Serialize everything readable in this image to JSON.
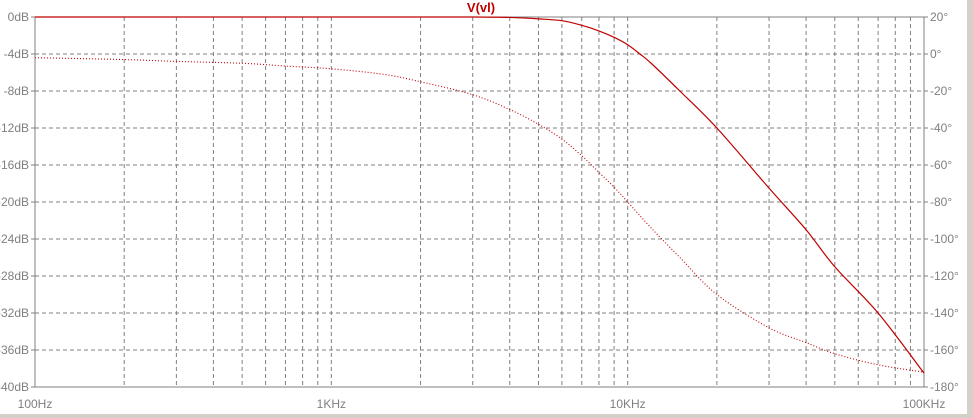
{
  "chart_data": {
    "type": "line",
    "title": "V(vl)",
    "x_scale": "log",
    "xlim": [
      100,
      100000
    ],
    "x_ticks": [
      {
        "value": 100,
        "label": "100Hz"
      },
      {
        "value": 1000,
        "label": "1KHz"
      },
      {
        "value": 10000,
        "label": "10KHz"
      },
      {
        "value": 100000,
        "label": "100KHz"
      }
    ],
    "ylim_left": [
      -40,
      0
    ],
    "y_left_ticks": [
      {
        "value": 0,
        "label": "0dB"
      },
      {
        "value": -4,
        "label": "-4dB"
      },
      {
        "value": -8,
        "label": "-8dB"
      },
      {
        "value": -12,
        "label": "-12dB"
      },
      {
        "value": -16,
        "label": "-16dB"
      },
      {
        "value": -20,
        "label": "-20dB"
      },
      {
        "value": -24,
        "label": "-24dB"
      },
      {
        "value": -28,
        "label": "-28dB"
      },
      {
        "value": -32,
        "label": "-32dB"
      },
      {
        "value": -36,
        "label": "-36dB"
      },
      {
        "value": -40,
        "label": "-40dB"
      }
    ],
    "ylim_right": [
      -180,
      20
    ],
    "y_right_ticks": [
      {
        "value": 20,
        "label": "20°"
      },
      {
        "value": 0,
        "label": "0°"
      },
      {
        "value": -20,
        "label": "-20°"
      },
      {
        "value": -40,
        "label": "-40°"
      },
      {
        "value": -60,
        "label": "-60°"
      },
      {
        "value": -80,
        "label": "-80°"
      },
      {
        "value": -100,
        "label": "-100°"
      },
      {
        "value": -120,
        "label": "-120°"
      },
      {
        "value": -140,
        "label": "-140°"
      },
      {
        "value": -160,
        "label": "-160°"
      },
      {
        "value": -180,
        "label": "-180°"
      }
    ],
    "grid": true,
    "grid_color": "#808080",
    "trace_color": "#c00000",
    "series": [
      {
        "axis": "left",
        "style": "solid",
        "x": [
          100,
          300,
          1000,
          2000,
          3000,
          4000,
          5000,
          6000,
          7000,
          8000,
          9000,
          10000,
          11000,
          12000,
          15000,
          20000,
          30000,
          40000,
          50000,
          70000,
          100000
        ],
        "y": [
          0,
          0,
          0,
          0,
          0,
          -0.05,
          -0.2,
          -0.4,
          -0.9,
          -1.5,
          -2.2,
          -3.0,
          -4.0,
          -5.0,
          -8.0,
          -12.0,
          -18.5,
          -23.0,
          -27.0,
          -32.0,
          -38.5
        ]
      },
      {
        "axis": "right",
        "style": "dotted",
        "x": [
          100,
          200,
          300,
          500,
          700,
          1000,
          1500,
          2000,
          3000,
          4000,
          5000,
          6000,
          7000,
          8000,
          9000,
          10000,
          12000,
          15000,
          20000,
          30000,
          40000,
          50000,
          70000,
          100000
        ],
        "y": [
          -2.0,
          -3.0,
          -4.0,
          -5.0,
          -6.5,
          -8.0,
          -11.0,
          -15.0,
          -22.0,
          -30.0,
          -38.0,
          -46.0,
          -55.0,
          -64.0,
          -72.0,
          -80.0,
          -94.0,
          -110.0,
          -130.0,
          -148.0,
          -156.0,
          -162.0,
          -168.0,
          -172.0
        ]
      }
    ]
  }
}
